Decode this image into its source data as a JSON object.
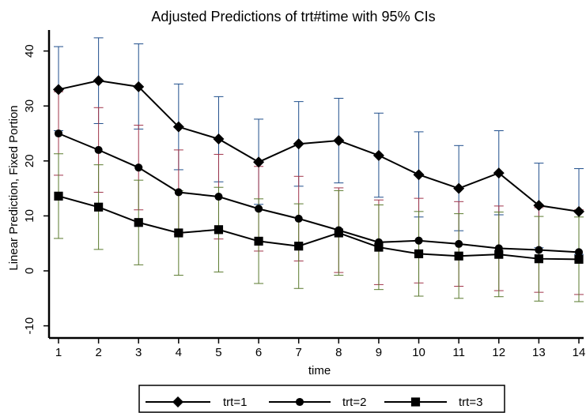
{
  "chart_data": {
    "type": "line",
    "title": "Adjusted Predictions of trt#time with 95% CIs",
    "xlabel": "time",
    "ylabel": "Linear Prediction, Fixed Portion",
    "x": [
      1,
      2,
      3,
      4,
      5,
      6,
      7,
      8,
      9,
      10,
      11,
      12,
      13,
      14
    ],
    "xticks": [
      "1",
      "2",
      "3",
      "4",
      "5",
      "6",
      "7",
      "8",
      "9",
      "10",
      "11",
      "12",
      "13",
      "14"
    ],
    "yticks": [
      "-10",
      "0",
      "10",
      "20",
      "30",
      "40"
    ],
    "ylim": [
      -12,
      44
    ],
    "xlim": [
      0.8,
      14.2
    ],
    "grid": false,
    "legend_position": "bottom",
    "series": [
      {
        "name": "trt=1",
        "marker": "diamond",
        "line_color": "#000000",
        "ci_color": "#1f4e8c",
        "values": [
          33,
          34.6,
          33.5,
          26.2,
          24,
          19.8,
          23.1,
          23.7,
          21,
          17.5,
          15,
          17.8,
          11.9,
          10.8
        ],
        "ci_low": [
          25.5,
          26.8,
          25.8,
          18.4,
          16.2,
          12.1,
          15.4,
          16.0,
          13.4,
          9.8,
          7.3,
          10.2,
          4.2,
          3.0
        ],
        "ci_high": [
          40.8,
          42.4,
          41.3,
          34.0,
          31.7,
          27.6,
          30.8,
          31.4,
          28.7,
          25.3,
          22.8,
          25.5,
          19.6,
          18.6
        ]
      },
      {
        "name": "trt=2",
        "marker": "circle",
        "line_color": "#000000",
        "ci_color": "#a0344a",
        "values": [
          25,
          22,
          18.8,
          14.3,
          13.5,
          11.3,
          9.5,
          7.4,
          5.2,
          5.5,
          4.9,
          4.1,
          3.8,
          3.4
        ],
        "ci_low": [
          17.4,
          14.3,
          11.1,
          6.6,
          5.8,
          3.6,
          1.8,
          -0.3,
          -2.5,
          -2.2,
          -2.8,
          -3.6,
          -3.9,
          -4.3
        ],
        "ci_high": [
          32.6,
          29.7,
          26.5,
          22.0,
          21.2,
          19.0,
          17.2,
          15.1,
          12.9,
          13.2,
          12.6,
          11.8,
          11.5,
          11.1
        ]
      },
      {
        "name": "trt=3",
        "marker": "square",
        "line_color": "#000000",
        "ci_color": "#5a7a2e",
        "values": [
          13.6,
          11.6,
          8.8,
          6.9,
          7.5,
          5.4,
          4.5,
          6.9,
          4.3,
          3.1,
          2.7,
          3.0,
          2.2,
          2.1
        ],
        "ci_low": [
          5.9,
          3.9,
          1.1,
          -0.8,
          -0.2,
          -2.3,
          -3.2,
          -0.8,
          -3.4,
          -4.6,
          -5.0,
          -4.7,
          -5.5,
          -5.6
        ],
        "ci_high": [
          21.3,
          19.3,
          16.5,
          14.6,
          15.2,
          13.1,
          12.2,
          14.6,
          12.0,
          10.8,
          10.4,
          10.7,
          9.9,
          9.8
        ]
      }
    ]
  }
}
